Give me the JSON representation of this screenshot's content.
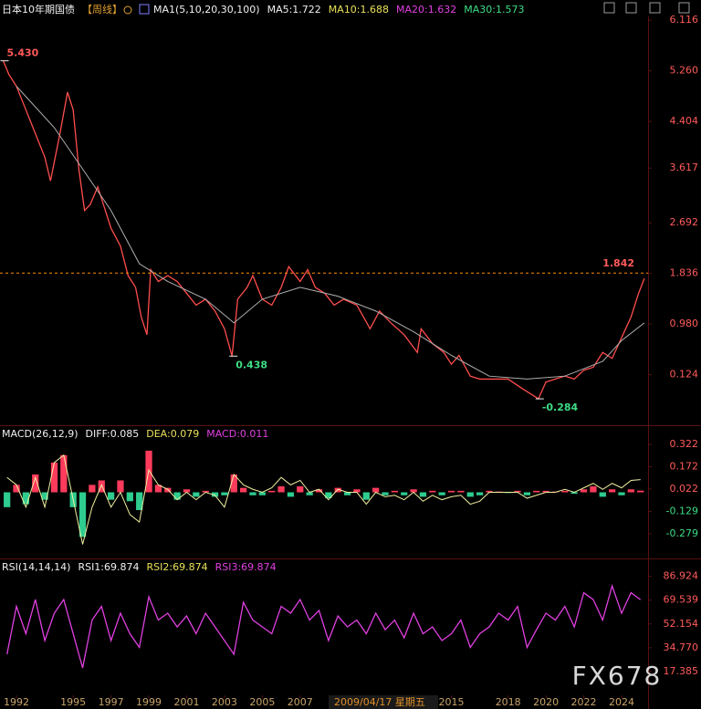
{
  "header": {
    "title": "日本10年期国债",
    "period": "【周线】",
    "indicator": "MA1(5,10,20,30,100)",
    "legend": [
      {
        "text": "MA5:1.722",
        "color": "#f0f0f0"
      },
      {
        "text": "MA10:1.688",
        "color": "#e8e05a"
      },
      {
        "text": "MA20:1.632",
        "color": "#e040e0"
      },
      {
        "text": "MA30:1.573",
        "color": "#3ddc84"
      }
    ]
  },
  "chart_data": [
    {
      "type": "line",
      "xlim": [
        1991.13,
        2025.4
      ],
      "ylim": [
        -0.73,
        6.18
      ],
      "yticks": [
        6.116,
        {
          "value": 5.26,
          "label": "5.260"
        },
        4.404,
        3.617,
        2.692,
        1.836,
        {
          "value": 0.98,
          "label": "0.980"
        },
        0.124
      ],
      "tick_color": "#ff5a5a",
      "negative_tick_color": "#3ddc84",
      "series": [
        {
          "color": "#ff4d4d",
          "x": [
            1991.3,
            1991.6,
            1992.0,
            1992.5,
            1993.0,
            1993.5,
            1993.8,
            1994.3,
            1994.7,
            1995.0,
            1995.3,
            1995.6,
            1995.9,
            1996.3,
            1996.6,
            1997.0,
            1997.5,
            1997.9,
            1998.3,
            1998.6,
            1998.9,
            1999.1,
            1999.5,
            2000.0,
            2000.5,
            2001.0,
            2001.5,
            2002.0,
            2002.5,
            2003.0,
            2003.4,
            2003.7,
            2004.2,
            2004.5,
            2005.0,
            2005.5,
            2006.0,
            2006.4,
            2007.0,
            2007.4,
            2007.8,
            2008.3,
            2008.8,
            2009.3,
            2010.0,
            2010.7,
            2011.2,
            2011.8,
            2012.5,
            2013.2,
            2013.4,
            2014.0,
            2014.6,
            2015.0,
            2015.4,
            2016.0,
            2016.5,
            2017.0,
            2018.0,
            2018.7,
            2019.6,
            2020.0,
            2020.5,
            2021.0,
            2021.5,
            2022.0,
            2022.5,
            2023.0,
            2023.5,
            2024.0,
            2024.5,
            2024.9,
            2025.2
          ],
          "values": [
            5.43,
            5.2,
            5.0,
            4.6,
            4.2,
            3.8,
            3.4,
            4.2,
            4.9,
            4.6,
            3.6,
            2.9,
            3.0,
            3.3,
            3.0,
            2.6,
            2.3,
            1.8,
            1.6,
            1.1,
            0.8,
            1.9,
            1.7,
            1.8,
            1.7,
            1.5,
            1.3,
            1.4,
            1.2,
            0.9,
            0.438,
            1.4,
            1.6,
            1.8,
            1.4,
            1.3,
            1.6,
            1.95,
            1.7,
            1.9,
            1.6,
            1.5,
            1.3,
            1.4,
            1.3,
            0.9,
            1.2,
            1.0,
            0.8,
            0.5,
            0.9,
            0.65,
            0.5,
            0.3,
            0.45,
            0.1,
            0.05,
            0.05,
            0.05,
            -0.1,
            -0.284,
            0.0,
            0.05,
            0.1,
            0.05,
            0.2,
            0.25,
            0.5,
            0.4,
            0.75,
            1.1,
            1.5,
            1.75
          ]
        },
        {
          "color": "#b0b0b0",
          "x": [
            1992,
            1994,
            1995.5,
            1997,
            1998.5,
            2000,
            2002,
            2003.5,
            2005,
            2007,
            2009,
            2011,
            2013,
            2015,
            2017,
            2019,
            2021,
            2023,
            2024,
            2025.2
          ],
          "values": [
            5.0,
            4.3,
            3.6,
            2.9,
            2.0,
            1.7,
            1.4,
            1.0,
            1.4,
            1.6,
            1.45,
            1.2,
            0.85,
            0.45,
            0.1,
            0.05,
            0.1,
            0.35,
            0.7,
            1.0
          ]
        }
      ],
      "reference_line": {
        "value": 1.842,
        "color": "#ff8c00",
        "label_color": "#ff5a5a"
      },
      "annotations": [
        {
          "x": 1991.3,
          "value": 5.43,
          "label": "5.430",
          "color": "#ff5a5a"
        },
        {
          "x": 2003.4,
          "value": 0.438,
          "color": "#3ddc84"
        },
        {
          "x": 2019.6,
          "value": -0.284,
          "color": "#3ddc84"
        }
      ]
    },
    {
      "type": "bar",
      "title": "MACD(26,12,9)",
      "xlim": [
        1991.13,
        2025.4
      ],
      "ylim": [
        -0.445,
        0.439
      ],
      "yticks": [
        0.322,
        0.172,
        0.022,
        -0.129,
        -0.279
      ],
      "tick_color": "#ff5a5a",
      "negative_tick_color": "#3ddc84",
      "legend": [
        {
          "text": "DIFF:0.085",
          "color": "#f0f0f0"
        },
        {
          "text": "DEA:0.079",
          "color": "#e8e05a"
        },
        {
          "text": "MACD:0.011",
          "color": "#e040e0"
        }
      ],
      "x": [
        1991.5,
        1992,
        1992.5,
        1993,
        1993.5,
        1994,
        1994.5,
        1995,
        1995.5,
        1996,
        1996.5,
        1997,
        1997.5,
        1998,
        1998.5,
        1999,
        1999.5,
        2000,
        2000.5,
        2001,
        2001.5,
        2002,
        2002.5,
        2003,
        2003.5,
        2004,
        2004.5,
        2005,
        2005.5,
        2006,
        2006.5,
        2007,
        2007.5,
        2008,
        2008.5,
        2009,
        2009.5,
        2010,
        2010.5,
        2011,
        2011.5,
        2012,
        2012.5,
        2013,
        2013.5,
        2014,
        2014.5,
        2015,
        2015.5,
        2016,
        2016.5,
        2017,
        2017.5,
        2018,
        2018.5,
        2019,
        2019.5,
        2020,
        2020.5,
        2021,
        2021.5,
        2022,
        2022.5,
        2023,
        2023.5,
        2024,
        2024.5,
        2025
      ],
      "series": [
        {
          "type": "bar",
          "color": "#ff3b5c",
          "negative_color": "#2ecc8f",
          "values": [
            -0.1,
            0.05,
            -0.08,
            0.12,
            -0.05,
            0.2,
            0.25,
            -0.1,
            -0.3,
            0.05,
            0.08,
            -0.05,
            0.08,
            -0.06,
            -0.12,
            0.28,
            0.05,
            0.03,
            -0.05,
            0.02,
            -0.03,
            0.01,
            -0.03,
            -0.02,
            0.12,
            0.03,
            -0.02,
            -0.02,
            0.01,
            0.04,
            -0.03,
            0.04,
            -0.02,
            0.02,
            -0.04,
            0.03,
            -0.02,
            0.02,
            -0.05,
            0.03,
            -0.02,
            0.01,
            -0.02,
            0.02,
            -0.03,
            0.01,
            -0.02,
            0.01,
            0.01,
            -0.03,
            -0.02,
            0.01,
            0.005,
            -0.005,
            0.01,
            -0.02,
            0.01,
            0.01,
            0.005,
            0.01,
            -0.01,
            0.02,
            0.04,
            -0.03,
            0.02,
            -0.02,
            0.02,
            0.011
          ]
        },
        {
          "type": "line",
          "color": "#f0f0a0",
          "values": [
            0.1,
            0.05,
            -0.1,
            0.1,
            -0.1,
            0.2,
            0.25,
            -0.05,
            -0.35,
            -0.1,
            0.05,
            -0.1,
            0.0,
            -0.15,
            -0.2,
            0.15,
            0.05,
            0.02,
            -0.05,
            0.0,
            -0.05,
            0.0,
            -0.02,
            -0.1,
            0.12,
            0.05,
            0.02,
            0.0,
            0.03,
            0.1,
            0.05,
            0.08,
            0.0,
            0.02,
            -0.05,
            0.02,
            0.0,
            0.0,
            -0.08,
            0.0,
            -0.03,
            -0.02,
            -0.05,
            0.0,
            -0.06,
            -0.02,
            -0.05,
            -0.03,
            -0.02,
            -0.08,
            -0.06,
            0.0,
            0.0,
            0.0,
            0.0,
            -0.04,
            -0.02,
            0.0,
            0.0,
            0.02,
            0.0,
            0.03,
            0.06,
            0.02,
            0.06,
            0.03,
            0.08,
            0.085
          ]
        }
      ]
    },
    {
      "type": "line",
      "title": "RSI(14,14,14)",
      "xlim": [
        1991.13,
        2025.4
      ],
      "ylim": [
        0,
        98.7
      ],
      "yticks": [
        86.924,
        69.539,
        52.154,
        {
          "value": 34.77,
          "label": "34.770"
        },
        17.385
      ],
      "tick_color": "#ff5a5a",
      "negative_tick_color": "#3ddc84",
      "legend": [
        {
          "text": "RSI1:69.874",
          "color": "#f0f0f0"
        },
        {
          "text": "RSI2:69.874",
          "color": "#e8e05a"
        },
        {
          "text": "RSI3:69.874",
          "color": "#e040e0"
        }
      ],
      "xticks": [
        1992,
        1995,
        1997,
        1999,
        2001,
        2003,
        2005,
        2007,
        2015,
        2018,
        2020,
        2022,
        2024
      ],
      "series": [
        {
          "color": "#e040e0",
          "x": [
            1991.5,
            1992,
            1992.5,
            1993,
            1993.5,
            1994,
            1994.5,
            1995,
            1995.5,
            1996,
            1996.5,
            1997,
            1997.5,
            1998,
            1998.5,
            1999,
            1999.5,
            2000,
            2000.5,
            2001,
            2001.5,
            2002,
            2002.5,
            2003,
            2003.5,
            2004,
            2004.5,
            2005,
            2005.5,
            2006,
            2006.5,
            2007,
            2007.5,
            2008,
            2008.5,
            2009,
            2009.5,
            2010,
            2010.5,
            2011,
            2011.5,
            2012,
            2012.5,
            2013,
            2013.5,
            2014,
            2014.5,
            2015,
            2015.5,
            2016,
            2016.5,
            2017,
            2017.5,
            2018,
            2018.5,
            2019,
            2019.5,
            2020,
            2020.5,
            2021,
            2021.5,
            2022,
            2022.5,
            2023,
            2023.5,
            2024,
            2024.5,
            2025
          ],
          "values": [
            30,
            65,
            45,
            70,
            40,
            60,
            70,
            45,
            20,
            55,
            65,
            40,
            60,
            45,
            35,
            72,
            55,
            60,
            50,
            58,
            45,
            60,
            50,
            40,
            30,
            68,
            55,
            50,
            45,
            65,
            60,
            70,
            55,
            62,
            40,
            58,
            50,
            55,
            45,
            60,
            48,
            55,
            42,
            60,
            45,
            50,
            40,
            45,
            55,
            35,
            45,
            50,
            60,
            55,
            65,
            35,
            48,
            60,
            55,
            65,
            50,
            75,
            70,
            55,
            80,
            60,
            75,
            69.874
          ]
        }
      ]
    }
  ],
  "crosshair_date": "2009/04/17 星期五",
  "watermark": "FX678"
}
